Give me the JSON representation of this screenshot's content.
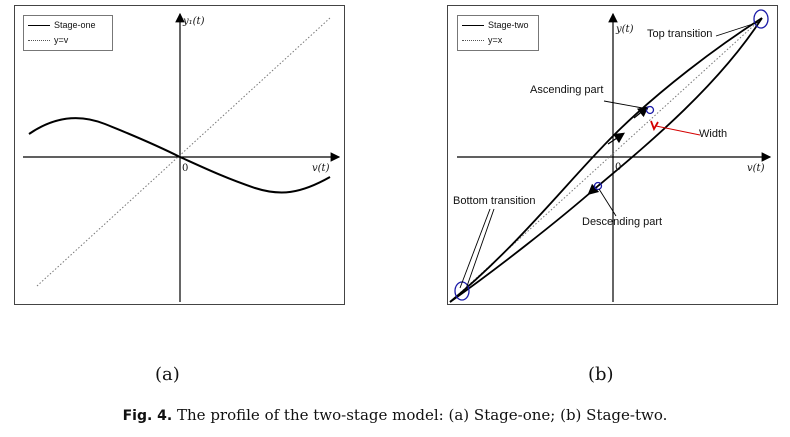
{
  "panel_a": {
    "legend": [
      "Stage-one",
      "y=v"
    ],
    "y_axis_label": "y₁(t)",
    "x_axis_label": "v(t)",
    "origin_label": "0",
    "sub_label": "(a)"
  },
  "panel_b": {
    "legend": [
      "Stage-two",
      "y=x"
    ],
    "y_axis_label": "y(t)",
    "x_axis_label": "v(t)",
    "origin_label": "0",
    "sub_label": "(b)",
    "annotations": {
      "top_transition": "Top transition",
      "ascending_part": "Ascending part",
      "width": "Width",
      "bottom_transition": "Bottom transition",
      "descending_part": "Descending part"
    }
  },
  "caption": {
    "prefix": "Fig. 4.",
    "text": " The profile of the two-stage model: (a) Stage-one; (b) Stage-two."
  },
  "colors": {
    "curve": "#000000",
    "reference_line": "#777777",
    "marker": "#1a1aa8",
    "width_marker": "#d40000"
  }
}
